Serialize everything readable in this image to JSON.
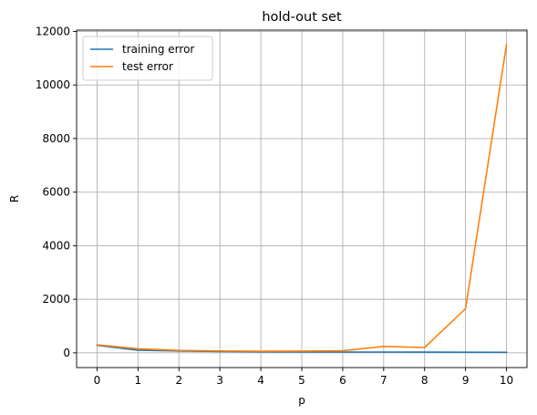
{
  "chart_data": {
    "type": "line",
    "title": "hold-out set",
    "xlabel": "p",
    "ylabel": "R",
    "x": [
      0,
      1,
      2,
      3,
      4,
      5,
      6,
      7,
      8,
      9,
      10
    ],
    "xlim": [
      -0.5,
      10.5
    ],
    "ylim": [
      -550,
      12050
    ],
    "xticks": [
      "0",
      "1",
      "2",
      "3",
      "4",
      "5",
      "6",
      "7",
      "8",
      "9",
      "10"
    ],
    "yticks": [
      0,
      2000,
      4000,
      6000,
      8000,
      10000,
      12000
    ],
    "ytick_labels": [
      "0",
      "2000",
      "4000",
      "6000",
      "8000",
      "10000",
      "12000"
    ],
    "grid": true,
    "legend": "upper-left",
    "series": [
      {
        "name": "training error",
        "color": "#1f77b4",
        "values": [
          280,
          100,
          70,
          50,
          40,
          35,
          30,
          28,
          25,
          22,
          20
        ]
      },
      {
        "name": "test error",
        "color": "#ff7f0e",
        "values": [
          300,
          150,
          90,
          70,
          60,
          65,
          75,
          240,
          200,
          1650,
          11500
        ]
      }
    ]
  }
}
